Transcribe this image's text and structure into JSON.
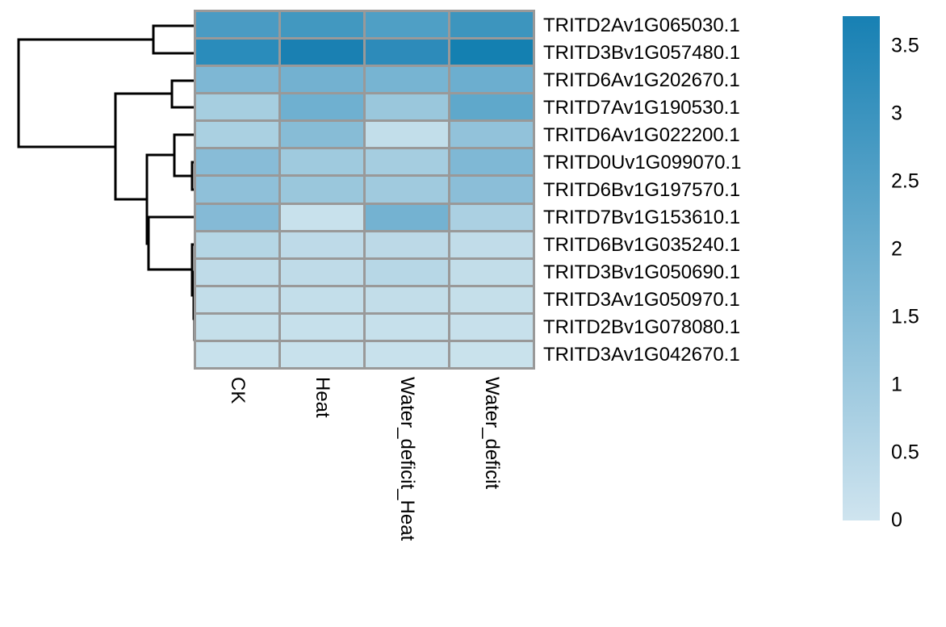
{
  "figure": {
    "background": "#ffffff",
    "grid_color": "#999999",
    "dendrogram_color": "#000000",
    "text_color": "#000000"
  },
  "chart_data": {
    "type": "heatmap",
    "title": "",
    "legend_position": "right",
    "columns": [
      "CK",
      "Heat",
      "Water_deficit_Heat",
      "Water_deficit"
    ],
    "rows": [
      "TRITD2Av1G065030.1",
      "TRITD3Bv1G057480.1",
      "TRITD6Av1G202670.1",
      "TRITD7Av1G190530.1",
      "TRITD6Av1G022200.1",
      "TRITD0Uv1G099070.1",
      "TRITD6Bv1G197570.1",
      "TRITD7Bv1G153610.1",
      "TRITD6Bv1G035240.1",
      "TRITD3Bv1G050690.1",
      "TRITD3Av1G050970.1",
      "TRITD2Bv1G078080.1",
      "TRITD3Av1G042670.1"
    ],
    "values": [
      [
        2.68,
        2.85,
        2.58,
        2.95
      ],
      [
        3.33,
        3.66,
        3.27,
        3.72
      ],
      [
        1.63,
        1.85,
        1.77,
        1.99
      ],
      [
        0.81,
        1.93,
        1.06,
        2.26
      ],
      [
        0.73,
        1.44,
        0.24,
        1.22
      ],
      [
        1.42,
        0.96,
        0.83,
        1.61
      ],
      [
        1.28,
        1.06,
        0.94,
        1.36
      ],
      [
        1.48,
        0.12,
        1.83,
        0.71
      ],
      [
        0.51,
        0.33,
        0.37,
        0.26
      ],
      [
        0.3,
        0.3,
        0.47,
        0.24
      ],
      [
        0.24,
        0.22,
        0.24,
        0.18
      ],
      [
        0.18,
        0.16,
        0.16,
        0.14
      ],
      [
        0.12,
        0.12,
        0.12,
        0.1
      ]
    ],
    "colors": [
      [
        "#4A9BC3",
        "#4298C0",
        "#4F9FC5",
        "#3D95BE"
      ],
      [
        "#2A8CBB",
        "#1A80B2",
        "#2D8BBA",
        "#1480B1"
      ],
      [
        "#7EB7D4",
        "#73B1D0",
        "#77B4D2",
        "#6CAECF"
      ],
      [
        "#A6CEE0",
        "#6FB0D0",
        "#9AC7DC",
        "#5FA8CB"
      ],
      [
        "#AAD0E1",
        "#87BCD6",
        "#C2DEEA",
        "#92C2DA"
      ],
      [
        "#88BCD7",
        "#9FCADE",
        "#A5CDE0",
        "#7FB8D5"
      ],
      [
        "#8FC0D9",
        "#9AC7DC",
        "#A0CADE",
        "#8BBED8"
      ],
      [
        "#85BAD6",
        "#C8E1EC",
        "#74B2D1",
        "#ABD0E2"
      ],
      [
        "#B5D6E5",
        "#BEDAE8",
        "#BCD9E7",
        "#C1DCE9"
      ],
      [
        "#BFDBE8",
        "#BFDBE8",
        "#B7D7E6",
        "#C2DDE9"
      ],
      [
        "#C2DDE9",
        "#C3DEEA",
        "#C2DDE9",
        "#C5DFEA"
      ],
      [
        "#C5DFEA",
        "#C6E0EB",
        "#C6E0EB",
        "#C7E0EB"
      ],
      [
        "#C8E1EC",
        "#C8E1EC",
        "#C8E1EC",
        "#C9E2EC"
      ]
    ],
    "colorbar": {
      "min": 0,
      "max": 3.72,
      "color_min": "#CFE4EF",
      "color_max": "#1780B3",
      "tick_labels": [
        "3.5",
        "3",
        "2.5",
        "2",
        "1.5",
        "1",
        "0.5",
        "0"
      ],
      "tick_values": [
        3.5,
        3,
        2.5,
        2,
        1.5,
        1,
        0.5,
        0
      ]
    },
    "row_dendrogram": {
      "paths": [
        [
          [
            243,
            32
          ],
          [
            190,
            32
          ],
          [
            190,
            66
          ],
          [
            243,
            66
          ]
        ],
        [
          [
            243,
            100
          ],
          [
            213,
            100
          ],
          [
            213,
            133
          ],
          [
            243,
            133
          ]
        ],
        [
          [
            243,
            201
          ],
          [
            238,
            201
          ],
          [
            238,
            235
          ],
          [
            243,
            235
          ]
        ],
        [
          [
            243,
            167
          ],
          [
            216,
            167
          ],
          [
            216,
            218
          ],
          [
            238,
            218
          ]
        ],
        [
          [
            243,
            404
          ],
          [
            242,
            404
          ],
          [
            242,
            438
          ],
          [
            243,
            438
          ]
        ],
        [
          [
            243,
            370
          ],
          [
            241,
            370
          ],
          [
            241,
            421
          ],
          [
            242,
            421
          ]
        ],
        [
          [
            243,
            337
          ],
          [
            240,
            337
          ],
          [
            240,
            395
          ],
          [
            241,
            395
          ]
        ],
        [
          [
            243,
            303
          ],
          [
            238,
            303
          ],
          [
            238,
            366
          ],
          [
            240,
            366
          ]
        ],
        [
          [
            243,
            269
          ],
          [
            184,
            269
          ],
          [
            184,
            334
          ],
          [
            238,
            334
          ]
        ],
        [
          [
            216,
            192
          ],
          [
            182,
            192
          ],
          [
            182,
            302
          ],
          [
            184,
            302
          ]
        ],
        [
          [
            213,
            116
          ],
          [
            143,
            116
          ],
          [
            143,
            247
          ],
          [
            182,
            247
          ]
        ],
        [
          [
            190,
            49
          ],
          [
            23,
            49
          ],
          [
            23,
            182
          ],
          [
            143,
            182
          ]
        ]
      ]
    }
  }
}
